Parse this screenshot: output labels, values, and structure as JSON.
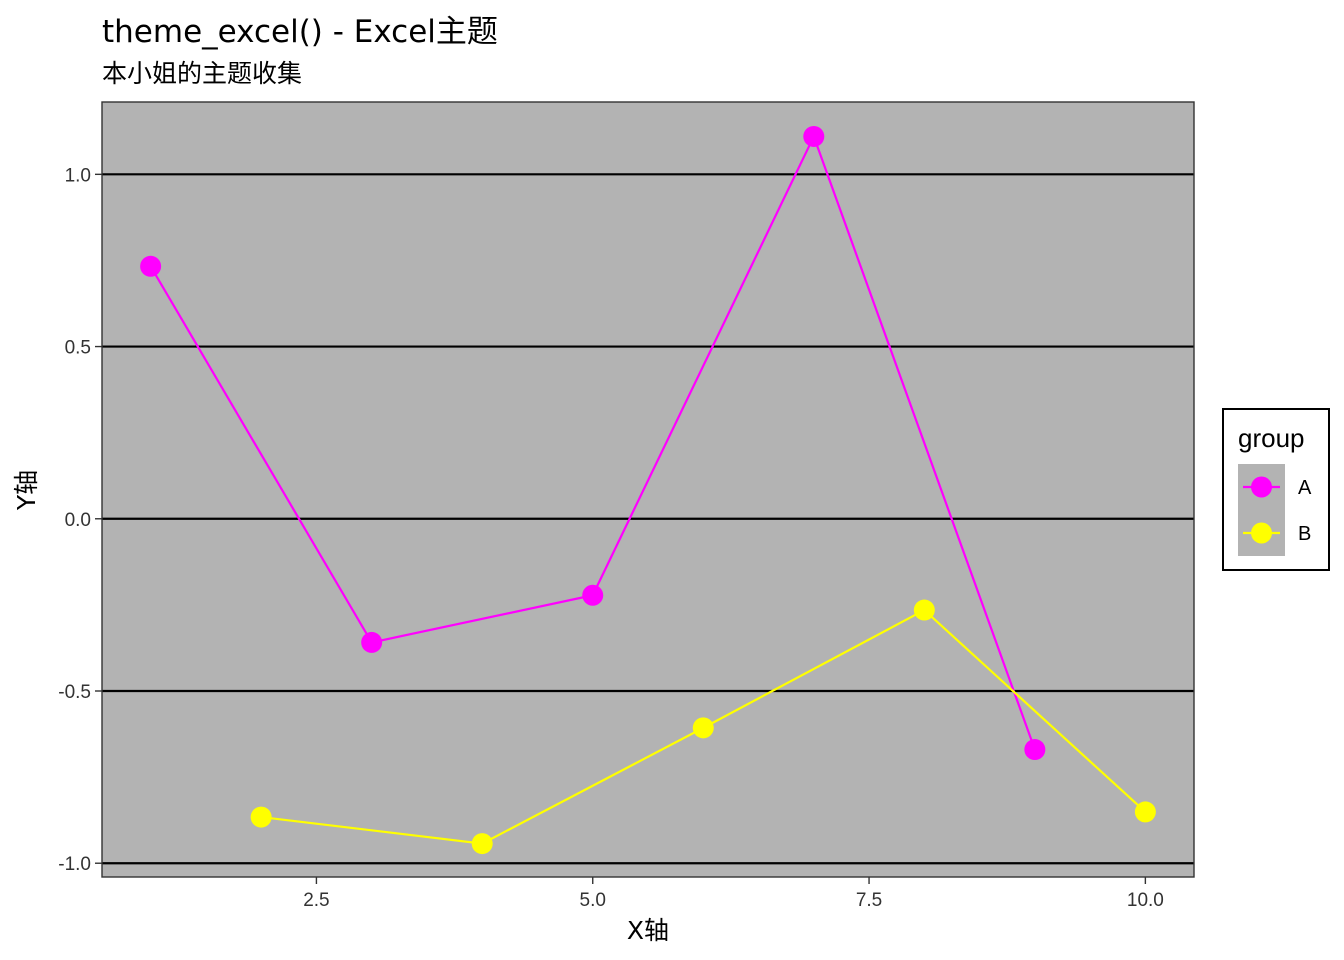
{
  "chart_data": {
    "type": "line",
    "title": "theme_excel() - Excel主题",
    "subtitle": "本小姐的主题收集",
    "xlabel": "X轴",
    "ylabel": "Y轴",
    "xlim": [
      0.56,
      10.44
    ],
    "ylim": [
      -1.04,
      1.21
    ],
    "x_ticks": [
      2.5,
      5.0,
      7.5,
      10.0
    ],
    "x_tick_labels": [
      "2.5",
      "5.0",
      "7.5",
      "10.0"
    ],
    "y_ticks": [
      -1.0,
      -0.5,
      0.0,
      0.5,
      1.0
    ],
    "y_tick_labels": [
      "-1.0",
      "-0.5",
      "0.0",
      "0.5",
      "1.0"
    ],
    "grid": "horizontal-major",
    "panel_background": "#b3b3b3",
    "legend": {
      "title": "group",
      "position": "right"
    },
    "series": [
      {
        "name": "A",
        "color": "#ff00ff",
        "x": [
          1,
          3,
          5,
          7,
          9
        ],
        "y": [
          0.733,
          -0.359,
          -0.222,
          1.11,
          -0.67
        ]
      },
      {
        "name": "B",
        "color": "#ffff00",
        "x": [
          2,
          4,
          6,
          8,
          10
        ],
        "y": [
          -0.866,
          -0.943,
          -0.607,
          -0.265,
          -0.851
        ]
      }
    ]
  }
}
